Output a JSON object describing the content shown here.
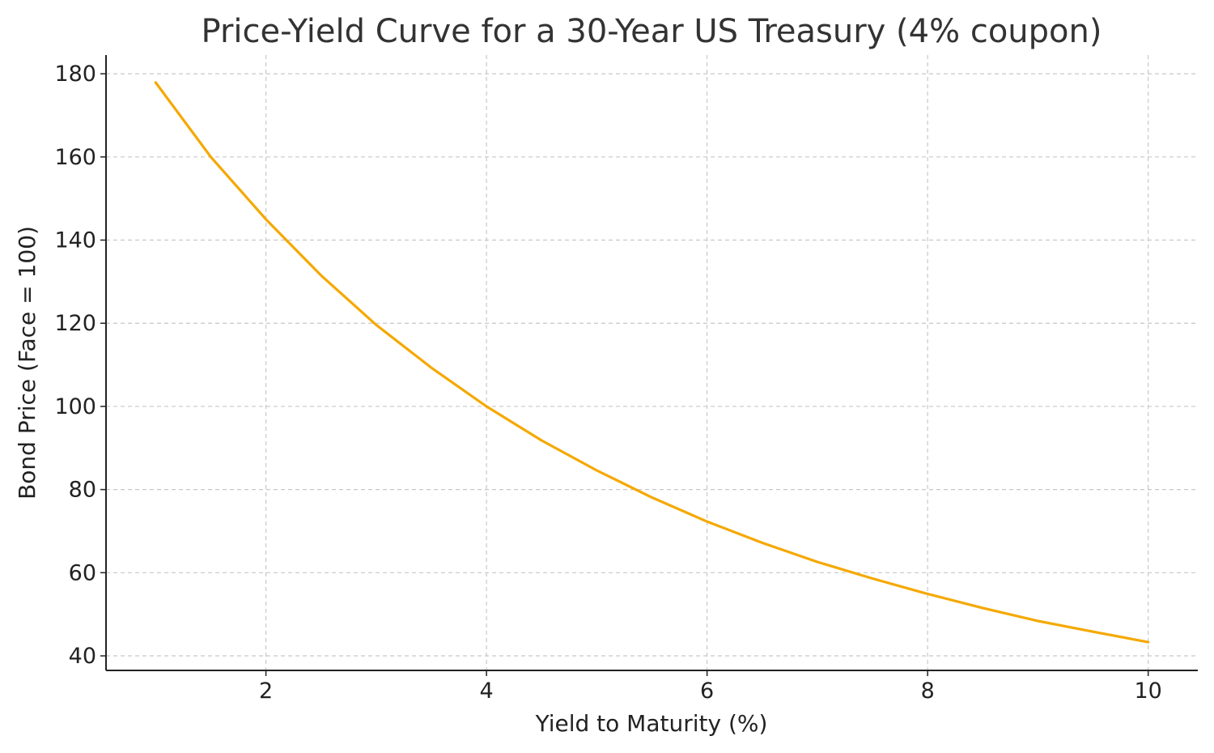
{
  "chart_data": {
    "type": "line",
    "title": "Price-Yield Curve for a 30-Year US Treasury (4% coupon)",
    "xlabel": "Yield to Maturity (%)",
    "ylabel": "Bond Price (Face = 100)",
    "xlim": [
      0.55,
      10.45
    ],
    "ylim": [
      36.5,
      184.5
    ],
    "xticks": [
      2,
      4,
      6,
      8,
      10
    ],
    "yticks": [
      40,
      60,
      80,
      100,
      120,
      140,
      160,
      180
    ],
    "grid": true,
    "legend": "none",
    "colors": {
      "line": "#f5a800",
      "grid": "#c8c8c8",
      "axis": "#222222",
      "text": "#333333"
    },
    "series": [
      {
        "x": [
          1.0,
          1.5,
          2.0,
          2.5,
          3.0,
          3.5,
          4.0,
          4.5,
          5.0,
          5.5,
          6.0,
          6.5,
          7.0,
          7.5,
          8.0,
          8.5,
          9.0,
          9.5,
          10.0
        ],
        "values": [
          177.9,
          160.0,
          145.0,
          131.5,
          119.6,
          109.3,
          100.0,
          91.8,
          84.6,
          78.1,
          72.3,
          67.2,
          62.6,
          58.6,
          54.9,
          51.5,
          48.4,
          45.8,
          43.3
        ]
      }
    ]
  }
}
